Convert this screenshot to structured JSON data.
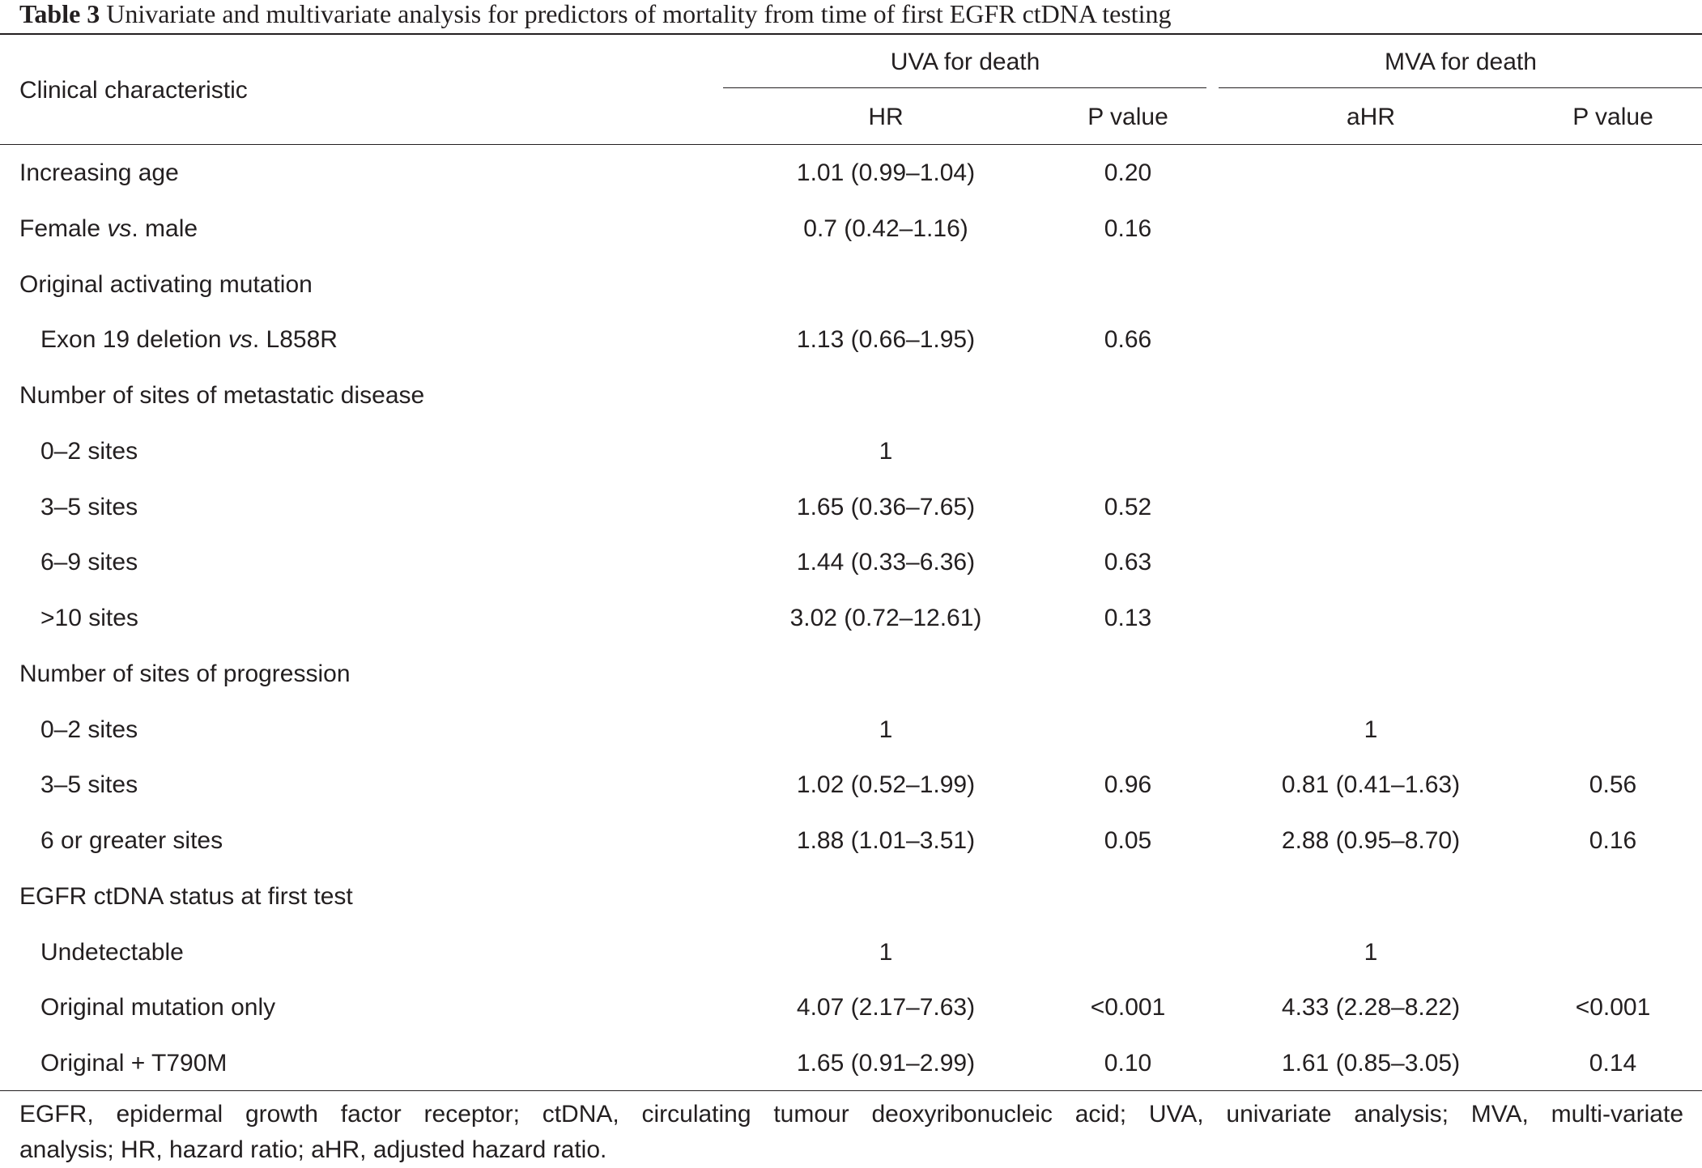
{
  "caption": {
    "label": "Table 3",
    "text": "Univariate and multivariate analysis for predictors of mortality from time of first EGFR ctDNA testing"
  },
  "header": {
    "characteristic": "Clinical characteristic",
    "uva_group": "UVA for death",
    "mva_group": "MVA for death",
    "uva_hr": "HR",
    "uva_p": "P value",
    "mva_hr": "aHR",
    "mva_p": "P value"
  },
  "rows": [
    {
      "pre": "Increasing age",
      "it": "",
      "post": "",
      "indent": false,
      "uva_hr": "1.01 (0.99–1.04)",
      "uva_p": "0.20",
      "mva_hr": "",
      "mva_p": ""
    },
    {
      "pre": "Female ",
      "it": "vs",
      "post": ". male",
      "indent": false,
      "uva_hr": "0.7 (0.42–1.16)",
      "uva_p": "0.16",
      "mva_hr": "",
      "mva_p": ""
    },
    {
      "pre": "Original activating mutation",
      "it": "",
      "post": "",
      "indent": false,
      "uva_hr": "",
      "uva_p": "",
      "mva_hr": "",
      "mva_p": ""
    },
    {
      "pre": "Exon 19 deletion ",
      "it": "vs",
      "post": ". L858R",
      "indent": true,
      "uva_hr": "1.13 (0.66–1.95)",
      "uva_p": "0.66",
      "mva_hr": "",
      "mva_p": ""
    },
    {
      "pre": "Number of sites of metastatic disease",
      "it": "",
      "post": "",
      "indent": false,
      "uva_hr": "",
      "uva_p": "",
      "mva_hr": "",
      "mva_p": ""
    },
    {
      "pre": "0–2 sites",
      "it": "",
      "post": "",
      "indent": true,
      "uva_hr": "1",
      "uva_p": "",
      "mva_hr": "",
      "mva_p": ""
    },
    {
      "pre": "3–5 sites",
      "it": "",
      "post": "",
      "indent": true,
      "uva_hr": "1.65 (0.36–7.65)",
      "uva_p": "0.52",
      "mva_hr": "",
      "mva_p": ""
    },
    {
      "pre": "6–9 sites",
      "it": "",
      "post": "",
      "indent": true,
      "uva_hr": "1.44 (0.33–6.36)",
      "uva_p": "0.63",
      "mva_hr": "",
      "mva_p": ""
    },
    {
      "pre": ">10 sites",
      "it": "",
      "post": "",
      "indent": true,
      "uva_hr": "3.02 (0.72–12.61)",
      "uva_p": "0.13",
      "mva_hr": "",
      "mva_p": ""
    },
    {
      "pre": "Number of sites of progression",
      "it": "",
      "post": "",
      "indent": false,
      "uva_hr": "",
      "uva_p": "",
      "mva_hr": "",
      "mva_p": ""
    },
    {
      "pre": "0–2 sites",
      "it": "",
      "post": "",
      "indent": true,
      "uva_hr": "1",
      "uva_p": "",
      "mva_hr": "1",
      "mva_p": ""
    },
    {
      "pre": "3–5 sites",
      "it": "",
      "post": "",
      "indent": true,
      "uva_hr": "1.02 (0.52–1.99)",
      "uva_p": "0.96",
      "mva_hr": "0.81 (0.41–1.63)",
      "mva_p": "0.56"
    },
    {
      "pre": "6 or greater sites",
      "it": "",
      "post": "",
      "indent": true,
      "uva_hr": "1.88 (1.01–3.51)",
      "uva_p": "0.05",
      "mva_hr": "2.88 (0.95–8.70)",
      "mva_p": "0.16"
    },
    {
      "pre": "EGFR ctDNA status at first test",
      "it": "",
      "post": "",
      "indent": false,
      "uva_hr": "",
      "uva_p": "",
      "mva_hr": "",
      "mva_p": ""
    },
    {
      "pre": "Undetectable",
      "it": "",
      "post": "",
      "indent": true,
      "uva_hr": "1",
      "uva_p": "",
      "mva_hr": "1",
      "mva_p": ""
    },
    {
      "pre": "Original mutation only",
      "it": "",
      "post": "",
      "indent": true,
      "uva_hr": "4.07 (2.17–7.63)",
      "uva_p": "<0.001",
      "mva_hr": "4.33 (2.28–8.22)",
      "mva_p": "<0.001"
    },
    {
      "pre": "Original + T790M",
      "it": "",
      "post": "",
      "indent": true,
      "uva_hr": "1.65 (0.91–2.99)",
      "uva_p": "0.10",
      "mva_hr": "1.61 (0.85–3.05)",
      "mva_p": "0.14"
    }
  ],
  "footnote": {
    "line1": "EGFR, epidermal growth factor receptor; ctDNA, circulating tumour deoxyribonucleic acid; UVA, univariate analysis; MVA, multi-variate",
    "line2": "analysis; HR, hazard ratio; aHR, adjusted hazard ratio."
  }
}
